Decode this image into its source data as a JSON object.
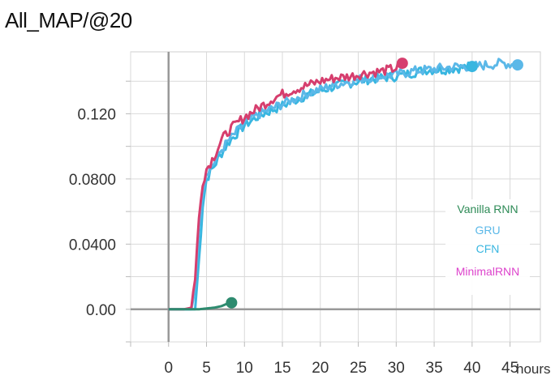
{
  "chart_data": {
    "type": "line",
    "title": "All_MAP/@20",
    "xlabel": "hours",
    "ylabel": "",
    "xlim": [
      -5,
      49
    ],
    "ylim": [
      -0.02,
      0.158
    ],
    "xticks": [
      0,
      5,
      10,
      15,
      20,
      25,
      30,
      35,
      40,
      45
    ],
    "xtick_labels": [
      "0",
      "5",
      "10",
      "15",
      "20",
      "25",
      "30",
      "35",
      "40",
      "45"
    ],
    "yticks": [
      0.0,
      0.04,
      0.08,
      0.12
    ],
    "ytick_labels": [
      "0.00",
      "0.0400",
      "0.0800",
      "0.120"
    ],
    "grid": true,
    "legend_position": "right",
    "legend": [
      {
        "name": "Vanilla RNN",
        "color": "#2e8b57"
      },
      {
        "name": "GRU",
        "color": "#5bb8e8"
      },
      {
        "name": "CFN",
        "color": "#38b6e0"
      },
      {
        "name": "MinimalRNN",
        "color": "#dd44cc"
      }
    ],
    "series": [
      {
        "name": "MinimalRNN",
        "color": "#d63e6e",
        "points": [
          [
            0,
            0
          ],
          [
            2,
            0
          ],
          [
            3,
            0.001
          ],
          [
            3.5,
            0.02
          ],
          [
            4,
            0.055
          ],
          [
            4.5,
            0.078
          ],
          [
            5,
            0.086
          ],
          [
            6,
            0.094
          ],
          [
            7,
            0.104
          ],
          [
            8,
            0.11
          ],
          [
            9,
            0.114
          ],
          [
            10,
            0.118
          ],
          [
            12,
            0.124
          ],
          [
            14,
            0.13
          ],
          [
            16,
            0.134
          ],
          [
            18,
            0.137
          ],
          [
            20,
            0.14
          ],
          [
            22,
            0.142
          ],
          [
            24,
            0.143
          ],
          [
            26,
            0.145
          ],
          [
            28,
            0.146
          ],
          [
            30,
            0.148
          ],
          [
            30.8,
            0.151
          ]
        ]
      },
      {
        "name": "GRU",
        "color": "#5bb8e8",
        "points": [
          [
            0,
            0
          ],
          [
            2,
            0
          ],
          [
            3,
            0
          ],
          [
            3.5,
            0.015
          ],
          [
            4,
            0.048
          ],
          [
            4.5,
            0.074
          ],
          [
            5,
            0.084
          ],
          [
            6,
            0.09
          ],
          [
            7,
            0.098
          ],
          [
            8,
            0.104
          ],
          [
            9,
            0.109
          ],
          [
            10,
            0.114
          ],
          [
            12,
            0.12
          ],
          [
            14,
            0.124
          ],
          [
            16,
            0.128
          ],
          [
            18,
            0.132
          ],
          [
            20,
            0.135
          ],
          [
            22,
            0.138
          ],
          [
            24,
            0.14
          ],
          [
            26,
            0.142
          ],
          [
            28,
            0.143
          ],
          [
            30,
            0.144
          ],
          [
            32,
            0.146
          ],
          [
            34,
            0.147
          ],
          [
            36,
            0.148
          ],
          [
            38,
            0.149
          ],
          [
            40,
            0.149
          ],
          [
            42,
            0.15
          ],
          [
            44,
            0.151
          ],
          [
            46,
            0.15
          ]
        ]
      },
      {
        "name": "CFN",
        "color": "#38b6e0",
        "points": [
          [
            0,
            0
          ],
          [
            2.5,
            0
          ],
          [
            3.5,
            0
          ],
          [
            4,
            0.03
          ],
          [
            4.5,
            0.064
          ],
          [
            5,
            0.08
          ],
          [
            6,
            0.088
          ],
          [
            7,
            0.096
          ],
          [
            8,
            0.103
          ],
          [
            9,
            0.108
          ],
          [
            10,
            0.113
          ],
          [
            12,
            0.119
          ],
          [
            14,
            0.123
          ],
          [
            16,
            0.127
          ],
          [
            18,
            0.131
          ],
          [
            20,
            0.134
          ],
          [
            22,
            0.137
          ],
          [
            24,
            0.139
          ],
          [
            26,
            0.141
          ],
          [
            28,
            0.142
          ],
          [
            30,
            0.143
          ],
          [
            32,
            0.145
          ],
          [
            34,
            0.147
          ],
          [
            36,
            0.147
          ],
          [
            38,
            0.148
          ],
          [
            40,
            0.149
          ]
        ]
      },
      {
        "name": "Vanilla RNN",
        "color": "#2e8b6f",
        "points": [
          [
            0,
            0
          ],
          [
            2,
            0
          ],
          [
            4,
            0
          ],
          [
            5,
            0.0005
          ],
          [
            6,
            0.001
          ],
          [
            7,
            0.002
          ],
          [
            7.5,
            0.003
          ],
          [
            8,
            0.004
          ],
          [
            8.3,
            0.004
          ]
        ]
      }
    ]
  }
}
